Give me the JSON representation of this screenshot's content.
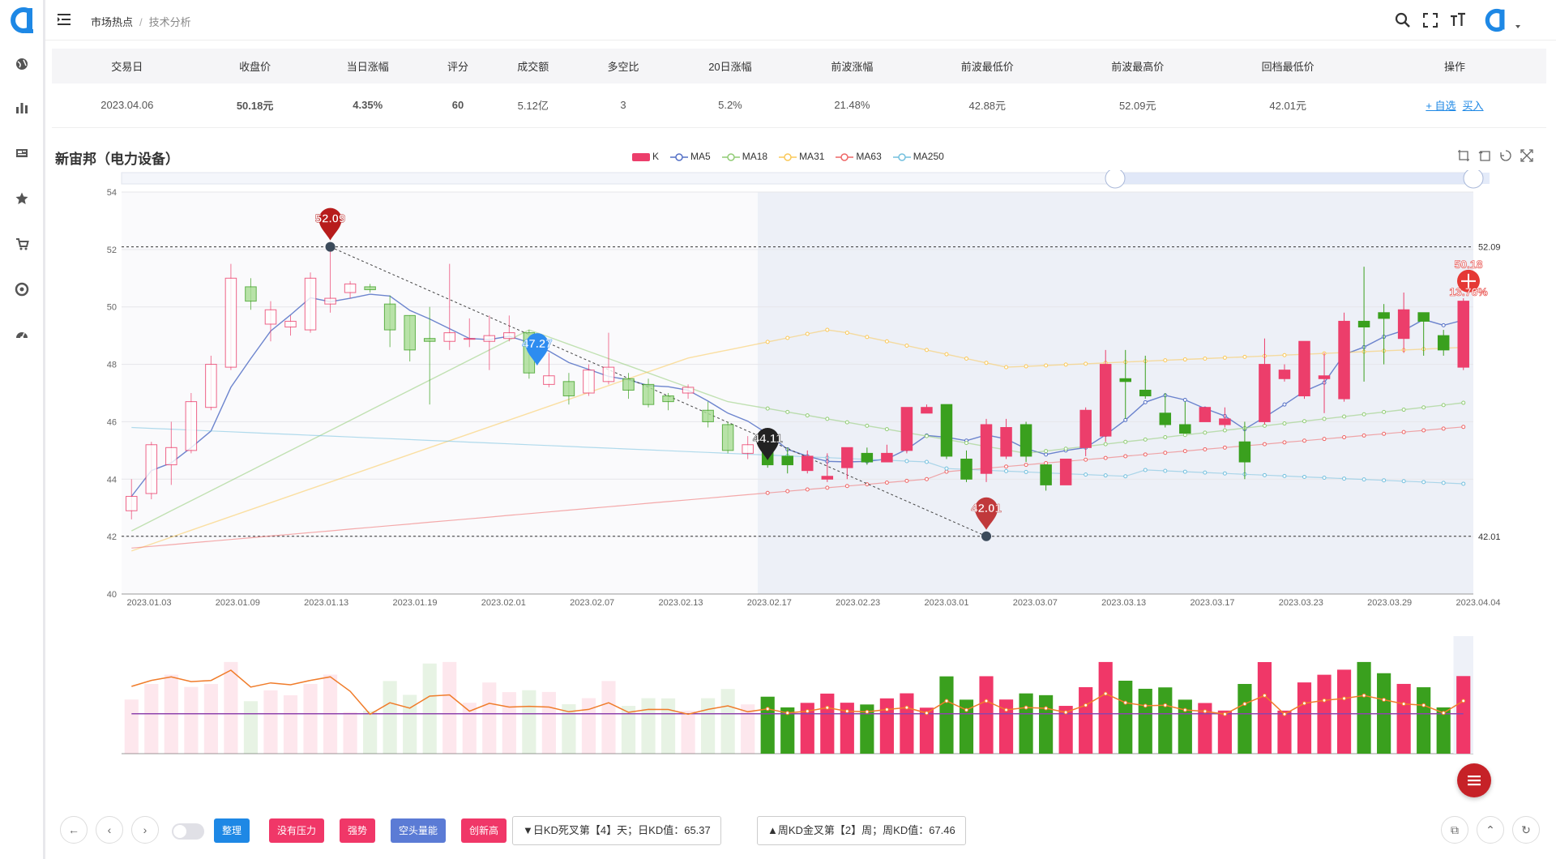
{
  "breadcrumb": {
    "root": "市场热点",
    "current": "技术分析"
  },
  "summary": {
    "headers": [
      "交易日",
      "收盘价",
      "当日涨幅",
      "评分",
      "成交额",
      "多空比",
      "20日涨幅",
      "前波涨幅",
      "前波最低价",
      "前波最高价",
      "回档最低价",
      "操作"
    ],
    "row": {
      "date": "2023.04.06",
      "close": "50.18元",
      "day_change": "4.35%",
      "score": "60",
      "turnover": "5.12亿",
      "ratio": "3",
      "change20": "5.2%",
      "wave_change": "21.48%",
      "wave_low": "42.88元",
      "wave_high": "52.09元",
      "pullback_low": "42.01元",
      "op_watch": "+ 自选",
      "op_buy": "买入"
    }
  },
  "chart": {
    "title": "新宙邦（电力设备）",
    "legend": [
      {
        "name": "K",
        "color": "#ec3e6b"
      },
      {
        "name": "MA5",
        "color": "#5470c6"
      },
      {
        "name": "MA18",
        "color": "#91cc75"
      },
      {
        "name": "MA31",
        "color": "#fac858"
      },
      {
        "name": "MA63",
        "color": "#ee6666"
      },
      {
        "name": "MA250",
        "color": "#73c0de"
      }
    ],
    "ref_high": "52.09",
    "ref_low": "42.01",
    "markers": {
      "high": "52.09",
      "low": "42.01",
      "mid": "47.27",
      "cur": "44.11",
      "last_price": "50.18",
      "last_pct": "13.76%"
    }
  },
  "chart_data": {
    "type": "candlestick",
    "ylim": [
      40,
      54
    ],
    "yticks": [
      "54",
      "52",
      "50",
      "48",
      "46",
      "44",
      "42",
      "40"
    ],
    "xticks": [
      "2023.01.03",
      "2023.01.09",
      "2023.01.13",
      "2023.01.19",
      "2023.02.01",
      "2023.02.07",
      "2023.02.13",
      "2023.02.17",
      "2023.02.23",
      "2023.03.01",
      "2023.03.07",
      "2023.03.13",
      "2023.03.17",
      "2023.03.23",
      "2023.03.29",
      "2023.04.04"
    ],
    "candles": [
      [
        42.9,
        43.4,
        42.6,
        44.0
      ],
      [
        43.5,
        45.2,
        43.3,
        45.3
      ],
      [
        44.5,
        45.1,
        43.8,
        46.0
      ],
      [
        45.0,
        46.7,
        44.9,
        47.0
      ],
      [
        46.5,
        48.0,
        46.4,
        48.3
      ],
      [
        47.9,
        51.0,
        47.8,
        51.5
      ],
      [
        50.7,
        50.2,
        49.9,
        51.0
      ],
      [
        49.4,
        49.9,
        48.8,
        50.2
      ],
      [
        49.3,
        49.5,
        49.0,
        49.7
      ],
      [
        49.2,
        51.0,
        49.1,
        51.2
      ],
      [
        50.1,
        50.3,
        49.8,
        52.1
      ],
      [
        50.5,
        50.8,
        50.3,
        50.9
      ],
      [
        50.7,
        50.6,
        50.5,
        50.8
      ],
      [
        50.1,
        49.2,
        48.6,
        50.4
      ],
      [
        49.7,
        48.5,
        48.1,
        49.7
      ],
      [
        48.9,
        48.8,
        46.6,
        50.0
      ],
      [
        48.8,
        49.1,
        48.5,
        51.5
      ],
      [
        48.9,
        48.9,
        48.6,
        49.6
      ],
      [
        48.8,
        49.0,
        47.8,
        49.7
      ],
      [
        48.9,
        49.1,
        48.8,
        49.7
      ],
      [
        49.1,
        47.7,
        47.5,
        49.2
      ],
      [
        47.3,
        47.6,
        47.2,
        48.4
      ],
      [
        47.4,
        46.9,
        46.6,
        47.7
      ],
      [
        47.0,
        47.8,
        46.9,
        48.0
      ],
      [
        47.4,
        47.9,
        47.3,
        49.1
      ],
      [
        47.5,
        47.1,
        46.8,
        47.7
      ],
      [
        47.3,
        46.6,
        46.5,
        47.5
      ],
      [
        46.9,
        46.7,
        46.4,
        47.0
      ],
      [
        47.0,
        47.2,
        46.8,
        47.3
      ],
      [
        46.4,
        46.0,
        45.8,
        46.7
      ],
      [
        45.9,
        45.0,
        44.9,
        46.0
      ],
      [
        44.9,
        45.2,
        44.7,
        45.5
      ],
      [
        45.1,
        44.5,
        44.4,
        45.3
      ],
      [
        44.8,
        44.5,
        44.2,
        45.1
      ],
      [
        44.3,
        44.8,
        44.2,
        45.0
      ],
      [
        44.0,
        44.1,
        43.9,
        44.9
      ],
      [
        44.4,
        45.1,
        44.0,
        45.1
      ],
      [
        44.9,
        44.6,
        44.5,
        45.1
      ],
      [
        44.6,
        44.9,
        44.6,
        45.2
      ],
      [
        45.0,
        46.5,
        44.9,
        46.5
      ],
      [
        46.3,
        46.5,
        46.3,
        46.6
      ],
      [
        46.6,
        44.8,
        44.7,
        46.6
      ],
      [
        44.7,
        44.0,
        43.9,
        45.0
      ],
      [
        44.2,
        45.9,
        43.9,
        46.1
      ],
      [
        44.8,
        45.8,
        44.7,
        46.1
      ],
      [
        45.9,
        44.8,
        44.6,
        46.0
      ],
      [
        44.5,
        43.8,
        43.6,
        44.5
      ],
      [
        43.8,
        44.7,
        43.8,
        44.7
      ],
      [
        45.1,
        46.4,
        44.8,
        46.5
      ],
      [
        45.5,
        48.0,
        45.3,
        48.5
      ],
      [
        47.5,
        47.4,
        46.1,
        48.5
      ],
      [
        47.1,
        46.9,
        46.8,
        48.3
      ],
      [
        46.3,
        45.9,
        45.8,
        47.0
      ],
      [
        45.9,
        45.6,
        45.6,
        46.7
      ],
      [
        46.0,
        46.5,
        46.0,
        46.5
      ],
      [
        45.9,
        46.1,
        45.8,
        46.5
      ],
      [
        45.3,
        44.6,
        44.0,
        46.0
      ],
      [
        46.0,
        48.0,
        45.9,
        48.9
      ],
      [
        47.5,
        47.8,
        47.4,
        48.0
      ],
      [
        46.9,
        48.8,
        46.8,
        48.8
      ],
      [
        47.5,
        47.6,
        46.3,
        48.4
      ],
      [
        46.8,
        49.5,
        46.7,
        49.8
      ],
      [
        49.5,
        49.3,
        47.4,
        51.4
      ],
      [
        49.8,
        49.6,
        48.0,
        50.1
      ],
      [
        48.9,
        49.9,
        48.4,
        50.5
      ],
      [
        49.8,
        49.5,
        48.3,
        49.8
      ],
      [
        49.0,
        48.5,
        48.3,
        49.2
      ],
      [
        47.9,
        50.2,
        47.8,
        50.3
      ]
    ],
    "volume_up": "#f03768",
    "volume_down": "#3aa01e"
  }
}
